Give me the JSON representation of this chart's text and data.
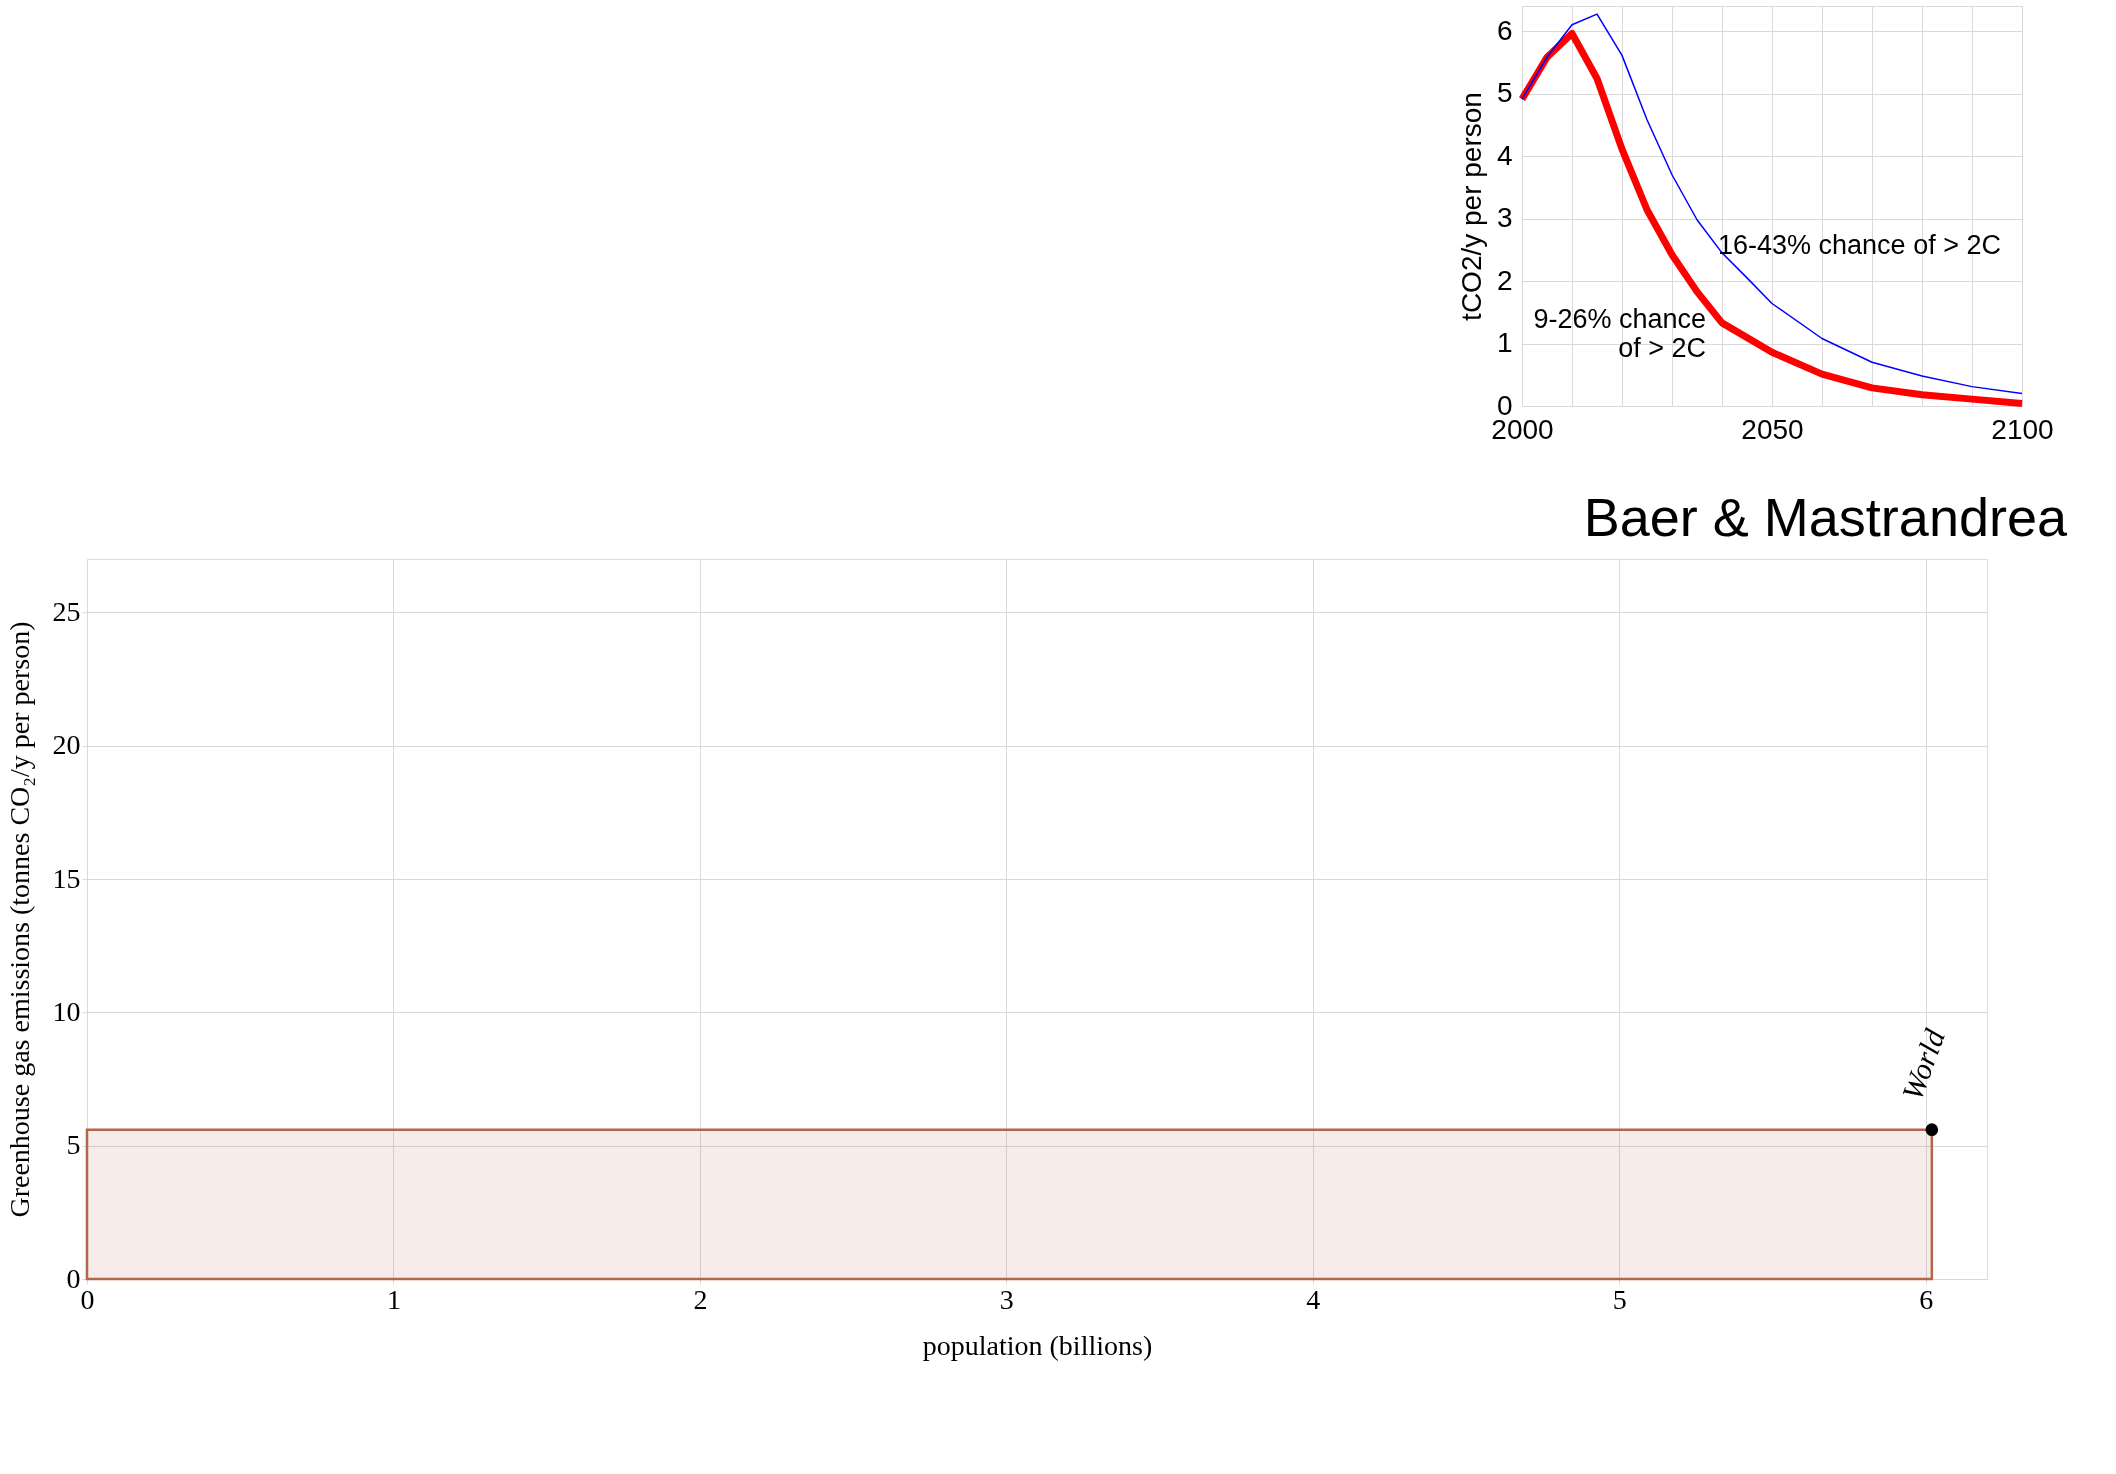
{
  "chart_data": [
    {
      "type": "area",
      "xlabel": "population (billions)",
      "ylabel": "Greenhouse gas emissions (tonnes CO₂/y per person)",
      "xlim": [
        0,
        6.2
      ],
      "xticks": [
        0,
        1,
        2,
        3,
        4,
        5,
        6
      ],
      "ylim": [
        0,
        27
      ],
      "yticks": [
        0,
        5,
        10,
        15,
        20,
        25
      ],
      "grid": true,
      "series": [
        {
          "type": "area",
          "x": [
            0,
            6.02
          ],
          "values": [
            5.6,
            5.6
          ],
          "color": "#b5654a"
        },
        {
          "type": "scatter",
          "name": "World",
          "x": [
            6.02
          ],
          "values": [
            5.6
          ],
          "color": "#000000",
          "marker": "circle"
        }
      ]
    },
    {
      "type": "line",
      "title": "Baer & Mastrandrea",
      "ylabel": "tCO2/y per person",
      "xlim": [
        2000,
        2100
      ],
      "ylim": [
        0,
        6.4
      ],
      "grid": true,
      "xticks": [
        2000,
        {
          "value": 2010,
          "label": null
        },
        {
          "value": 2020,
          "label": null
        },
        {
          "value": 2030,
          "label": null
        },
        {
          "value": 2040,
          "label": null
        },
        2050,
        {
          "value": 2060,
          "label": null
        },
        {
          "value": 2070,
          "label": null
        },
        {
          "value": 2080,
          "label": null
        },
        {
          "value": 2090,
          "label": null
        },
        2100
      ],
      "yticks": [
        0,
        1,
        2,
        3,
        4,
        5,
        6
      ],
      "series": [
        {
          "color": "#ff0000",
          "x": [
            2000,
            2005,
            2010,
            2015,
            2020,
            2025,
            2030,
            2035,
            2040,
            2050,
            2060,
            2070,
            2080,
            2090,
            2100
          ],
          "values": [
            4.91,
            5.58,
            5.96,
            5.24,
            4.11,
            3.14,
            2.42,
            1.83,
            1.33,
            0.86,
            0.51,
            0.29,
            0.18,
            0.11,
            0.04
          ]
        },
        {
          "color": "#0000ff",
          "x": [
            2000,
            2005,
            2010,
            2015,
            2020,
            2025,
            2030,
            2035,
            2040,
            2045,
            2050,
            2060,
            2070,
            2080,
            2090,
            2100
          ],
          "values": [
            4.91,
            5.58,
            6.1,
            6.27,
            5.61,
            4.58,
            3.7,
            2.98,
            2.45,
            2.05,
            1.64,
            1.08,
            0.7,
            0.48,
            0.31,
            0.2
          ]
        }
      ],
      "annotations": [
        "16-43% chance of > 2C",
        "9-26% chance\nof > 2C"
      ]
    }
  ]
}
